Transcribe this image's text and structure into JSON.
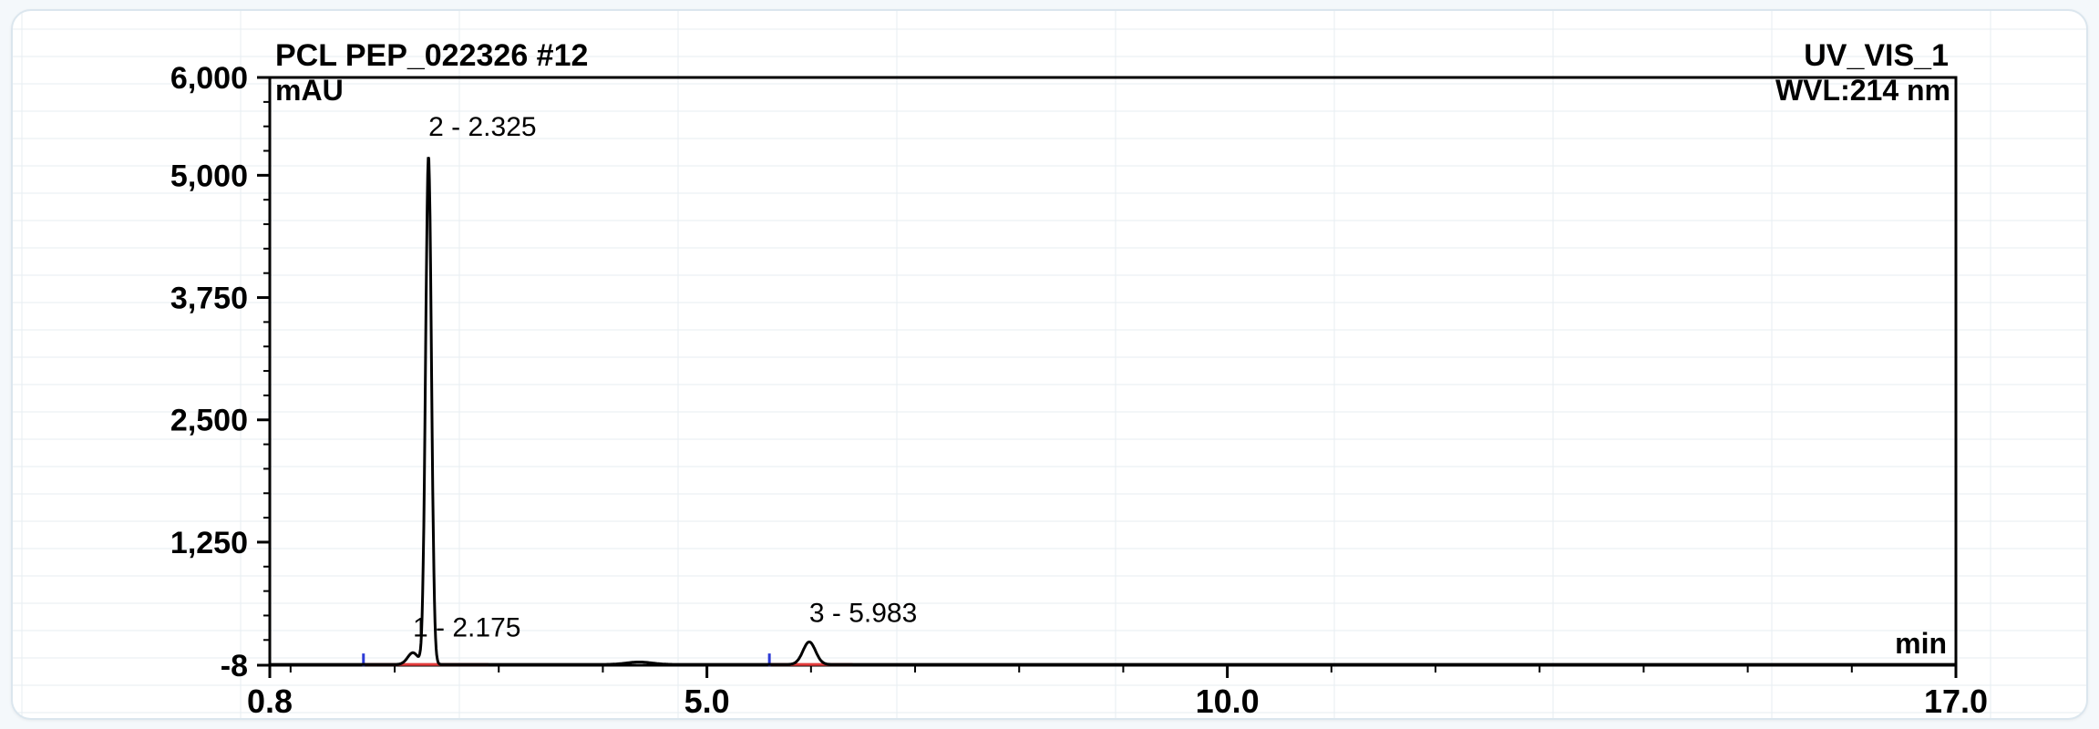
{
  "chart_data": {
    "type": "line",
    "title": "PCL PEP_022326 #12",
    "channel": "UV_VIS_1",
    "wavelength": "WVL:214 nm",
    "ylabel": "mAU",
    "xlabel": "min",
    "xlim": [
      0.8,
      17.0
    ],
    "ylim": [
      -8,
      6000
    ],
    "x_ticks": [
      0.8,
      5.0,
      10.0,
      17.0
    ],
    "x_tick_labels": [
      "0.8",
      "5.0",
      "10.0",
      "17.0"
    ],
    "y_ticks": [
      -8,
      1250,
      2500,
      3750,
      5000,
      6000
    ],
    "y_tick_labels": [
      "-8",
      "1,250",
      "2,500",
      "3,750",
      "5,000",
      "6,000"
    ],
    "peaks": [
      {
        "label": "1 - 2.175",
        "x": 2.175,
        "y": 120
      },
      {
        "label": "2 - 2.325",
        "x": 2.325,
        "y": 5200
      },
      {
        "label": "3 - 5.983",
        "x": 5.983,
        "y": 230
      }
    ],
    "baseline_segments": [
      [
        1.7,
        2.9
      ],
      [
        5.6,
        6.4
      ]
    ],
    "grid": false,
    "colors": {
      "trace": "#000000",
      "baseline": "#e23b3b",
      "marker": "#2d3bd6",
      "frame": "#000000",
      "background": "#ffffff"
    }
  }
}
